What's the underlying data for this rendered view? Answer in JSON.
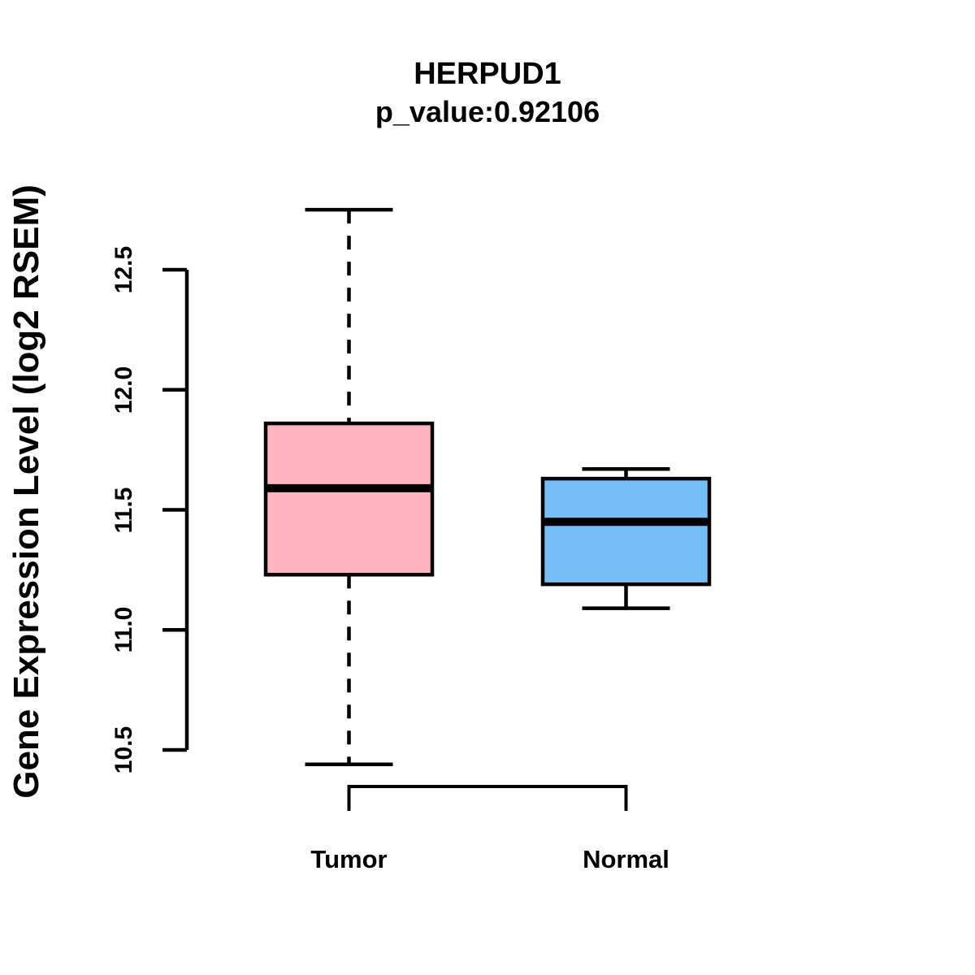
{
  "chart_data": {
    "type": "boxplot",
    "title": "HERPUD1",
    "subtitle": "p_value:0.92106",
    "ylabel": "Gene Expression Level (log2 RSEM)",
    "xlabel": "",
    "categories": [
      "Tumor",
      "Normal"
    ],
    "y_axis": {
      "ticks": [
        10.5,
        11.0,
        11.5,
        12.0,
        12.5
      ],
      "tick_labels": [
        "10.5",
        "11.0",
        "11.5",
        "12.0",
        "12.5"
      ]
    },
    "series": [
      {
        "name": "Tumor",
        "fill_color": "#FFB6C1",
        "whisker_low": 10.44,
        "q1": 11.23,
        "median": 11.59,
        "q3": 11.86,
        "whisker_high": 12.75,
        "whisker_style": "dashed"
      },
      {
        "name": "Normal",
        "fill_color": "#76BEF7",
        "whisker_low": 11.09,
        "q1": 11.19,
        "median": 11.45,
        "q3": 11.63,
        "whisker_high": 11.67,
        "whisker_style": "solid"
      }
    ],
    "outliers": [],
    "stroke_color": "#000000",
    "background_color": "#FFFFFF",
    "grid": false,
    "legend": false
  }
}
